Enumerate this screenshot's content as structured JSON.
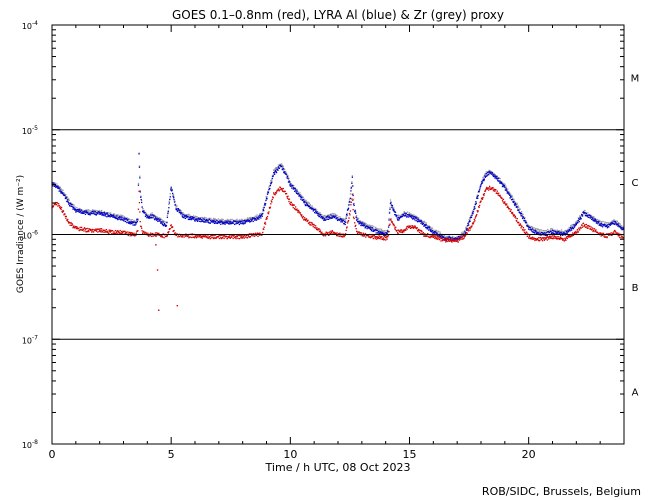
{
  "chart_data": {
    "type": "scatter",
    "title": "GOES 0.1–0.8nm (red), LYRA Al (blue) & Zr (grey) proxy",
    "xlabel": "Time / h UTC, 08 Oct 2023",
    "ylabel": "GOES Irradiance / (W m⁻²)",
    "credit": "ROB/SIDC, Brussels, Belgium",
    "xlim": [
      0,
      24
    ],
    "ylim": [
      1e-08,
      0.0001
    ],
    "yscale": "log",
    "grid": false,
    "x_ticks": [
      {
        "value": 0,
        "label": "0"
      },
      {
        "value": 5,
        "label": "5"
      },
      {
        "value": 10,
        "label": "10"
      },
      {
        "value": 15,
        "label": "15"
      },
      {
        "value": 20,
        "label": "20"
      }
    ],
    "y_ticks": [
      {
        "value": 1e-08,
        "base": "10",
        "exp": "-8"
      },
      {
        "value": 1e-07,
        "base": "10",
        "exp": "-7"
      },
      {
        "value": 1e-06,
        "base": "10",
        "exp": "-6"
      },
      {
        "value": 1e-05,
        "base": "10",
        "exp": "-5"
      },
      {
        "value": 0.0001,
        "base": "10",
        "exp": "-4"
      }
    ],
    "flare_class_lines": [
      1e-07,
      1e-06,
      1e-05
    ],
    "flare_classes": [
      {
        "label": "A",
        "value": 3.16e-08
      },
      {
        "label": "B",
        "value": 3.16e-07
      },
      {
        "label": "C",
        "value": 3.16e-06
      },
      {
        "label": "M",
        "value": 3.16e-05
      }
    ],
    "series": [
      {
        "color": "#d00000",
        "x": [
          0,
          0.1,
          0.3,
          0.5,
          0.7,
          1.0,
          1.5,
          2.0,
          2.5,
          3.0,
          3.3,
          3.5,
          3.6,
          3.65,
          3.7,
          3.8,
          4.0,
          4.2,
          4.4,
          4.6,
          4.8,
          5.0,
          5.2,
          5.5,
          6.0,
          6.5,
          7.0,
          7.5,
          8.0,
          8.5,
          8.8,
          9.0,
          9.3,
          9.6,
          9.8,
          10.0,
          10.3,
          10.6,
          11.0,
          11.4,
          11.8,
          12.0,
          12.3,
          12.5,
          12.6,
          12.65,
          12.7,
          12.8,
          13.0,
          13.5,
          14.0,
          14.1,
          14.2,
          14.5,
          14.8,
          15.0,
          15.3,
          15.6,
          16.0,
          16.5,
          17.0,
          17.3,
          17.7,
          18.0,
          18.2,
          18.4,
          18.7,
          19.0,
          19.4,
          19.8,
          20.0,
          20.3,
          20.6,
          21.0,
          21.5,
          22.0,
          22.3,
          22.6,
          23.0,
          23.3,
          23.6,
          24.0
        ],
        "y": [
          1.8e-06,
          2e-06,
          1.9e-06,
          1.6e-06,
          1.3e-06,
          1.15e-06,
          1.1e-06,
          1.1e-06,
          1.05e-06,
          1.05e-06,
          1e-06,
          1e-06,
          1.1e-06,
          2.6e-06,
          1.3e-06,
          1.05e-06,
          1e-06,
          1e-06,
          1e-06,
          9.8e-07,
          9.6e-07,
          1.2e-06,
          1e-06,
          9.7e-07,
          9.7e-07,
          9.5e-07,
          9.5e-07,
          9.5e-07,
          9.5e-07,
          1e-06,
          1e-06,
          1.4e-06,
          2.4e-06,
          2.8e-06,
          2.5e-06,
          2e-06,
          1.7e-06,
          1.4e-06,
          1.2e-06,
          1e-06,
          1.05e-06,
          1e-06,
          9.7e-07,
          1.6e-06,
          2.4e-06,
          1.5e-06,
          1.3e-06,
          1.05e-06,
          1e-06,
          9.5e-07,
          9.2e-07,
          9.5e-07,
          1.4e-06,
          1.05e-06,
          1.1e-06,
          1.2e-06,
          1.15e-06,
          1e-06,
          9.5e-07,
          8.8e-07,
          8.7e-07,
          9.5e-07,
          1.3e-06,
          2.1e-06,
          2.7e-06,
          2.8e-06,
          2.5e-06,
          2e-06,
          1.5e-06,
          1.1e-06,
          9.5e-07,
          9e-07,
          9e-07,
          9.5e-07,
          9e-07,
          1.05e-06,
          1.25e-06,
          1.15e-06,
          1e-06,
          9.7e-07,
          1.05e-06,
          9.2e-07
        ]
      },
      {
        "color": "#0000c8",
        "x": [
          0,
          0.1,
          0.3,
          0.5,
          0.7,
          1.0,
          1.5,
          2.0,
          2.5,
          3.0,
          3.3,
          3.5,
          3.6,
          3.65,
          3.7,
          3.8,
          4.0,
          4.2,
          4.4,
          4.6,
          4.8,
          5.0,
          5.2,
          5.5,
          6.0,
          6.5,
          7.0,
          7.5,
          8.0,
          8.5,
          8.8,
          9.0,
          9.3,
          9.6,
          9.8,
          10.0,
          10.3,
          10.6,
          11.0,
          11.4,
          11.8,
          12.0,
          12.3,
          12.5,
          12.6,
          12.65,
          12.7,
          12.8,
          13.0,
          13.5,
          14.0,
          14.1,
          14.2,
          14.5,
          14.8,
          15.0,
          15.3,
          15.6,
          16.0,
          16.5,
          17.0,
          17.3,
          17.7,
          18.0,
          18.2,
          18.4,
          18.7,
          19.0,
          19.4,
          19.8,
          20.0,
          20.3,
          20.6,
          21.0,
          21.5,
          22.0,
          22.3,
          22.6,
          23.0,
          23.3,
          23.6,
          24.0
        ],
        "y": [
          3e-06,
          3e-06,
          2.7e-06,
          2.4e-06,
          2e-06,
          1.7e-06,
          1.6e-06,
          1.6e-06,
          1.5e-06,
          1.4e-06,
          1.3e-06,
          1.25e-06,
          1.4e-06,
          6e-06,
          2.5e-06,
          1.7e-06,
          1.45e-06,
          1.5e-06,
          1.4e-06,
          1.3e-06,
          1.2e-06,
          2.8e-06,
          1.8e-06,
          1.5e-06,
          1.4e-06,
          1.35e-06,
          1.3e-06,
          1.3e-06,
          1.3e-06,
          1.4e-06,
          1.5e-06,
          2.2e-06,
          3.8e-06,
          4.5e-06,
          3.8e-06,
          3e-06,
          2.5e-06,
          2e-06,
          1.7e-06,
          1.4e-06,
          1.5e-06,
          1.4e-06,
          1.3e-06,
          2.1e-06,
          3.4e-06,
          2e-06,
          1.7e-06,
          1.35e-06,
          1.25e-06,
          1.1e-06,
          1e-06,
          1.05e-06,
          2e-06,
          1.4e-06,
          1.55e-06,
          1.5e-06,
          1.4e-06,
          1.25e-06,
          1.05e-06,
          9.2e-07,
          9e-07,
          1e-06,
          1.7e-06,
          3e-06,
          3.7e-06,
          3.9e-06,
          3.4e-06,
          2.8e-06,
          2e-06,
          1.4e-06,
          1.15e-06,
          1.05e-06,
          1e-06,
          1.05e-06,
          1e-06,
          1.25e-06,
          1.6e-06,
          1.45e-06,
          1.25e-06,
          1.2e-06,
          1.3e-06,
          1.1e-06
        ]
      },
      {
        "color": "#9a9a9a",
        "x": [
          0,
          0.1,
          0.3,
          0.5,
          0.7,
          1.0,
          1.5,
          2.0,
          2.5,
          3.0,
          3.3,
          3.5,
          3.6,
          3.65,
          3.7,
          3.8,
          4.0,
          4.2,
          4.4,
          4.6,
          4.8,
          5.0,
          5.2,
          5.5,
          6.0,
          6.5,
          7.0,
          7.5,
          8.0,
          8.5,
          8.8,
          9.0,
          9.3,
          9.6,
          9.8,
          10.0,
          10.3,
          10.6,
          11.0,
          11.4,
          11.8,
          12.0,
          12.3,
          12.5,
          12.6,
          12.65,
          12.7,
          12.8,
          13.0,
          13.5,
          14.0,
          14.1,
          14.2,
          14.5,
          14.8,
          15.0,
          15.3,
          15.6,
          16.0,
          16.5,
          17.0,
          17.3,
          17.7,
          18.0,
          18.2,
          18.4,
          18.7,
          19.0,
          19.4,
          19.8,
          20.0,
          20.3,
          20.6,
          21.0,
          21.5,
          22.0,
          22.3,
          22.6,
          23.0,
          23.3,
          23.6,
          24.0
        ],
        "y": [
          3.1e-06,
          3.1e-06,
          2.8e-06,
          2.5e-06,
          2.1e-06,
          1.75e-06,
          1.65e-06,
          1.65e-06,
          1.55e-06,
          1.45e-06,
          1.35e-06,
          1.3e-06,
          1.45e-06,
          6.1e-06,
          2.6e-06,
          1.75e-06,
          1.5e-06,
          1.55e-06,
          1.45e-06,
          1.35e-06,
          1.25e-06,
          2.9e-06,
          1.85e-06,
          1.55e-06,
          1.45e-06,
          1.4e-06,
          1.35e-06,
          1.35e-06,
          1.35e-06,
          1.45e-06,
          1.55e-06,
          2.3e-06,
          4e-06,
          4.7e-06,
          4e-06,
          3.1e-06,
          2.6e-06,
          2.1e-06,
          1.75e-06,
          1.45e-06,
          1.55e-06,
          1.45e-06,
          1.35e-06,
          2.2e-06,
          3.5e-06,
          2.1e-06,
          1.75e-06,
          1.4e-06,
          1.3e-06,
          1.15e-06,
          1.05e-06,
          1.1e-06,
          2.05e-06,
          1.45e-06,
          1.6e-06,
          1.55e-06,
          1.45e-06,
          1.3e-06,
          1.1e-06,
          9.5e-07,
          9.2e-07,
          1.05e-06,
          1.75e-06,
          3.1e-06,
          3.8e-06,
          4e-06,
          3.5e-06,
          2.9e-06,
          2.1e-06,
          1.45e-06,
          1.2e-06,
          1.1e-06,
          1.05e-06,
          1.1e-06,
          1.05e-06,
          1.3e-06,
          1.65e-06,
          1.5e-06,
          1.3e-06,
          1.25e-06,
          1.35e-06,
          1.15e-06
        ]
      },
      {
        "color": "#d00000",
        "mode": "points",
        "x": [
          4.35,
          4.42,
          4.47,
          5.25
        ],
        "y": [
          8e-07,
          4.6e-07,
          1.9e-07,
          2.1e-07
        ]
      }
    ]
  }
}
